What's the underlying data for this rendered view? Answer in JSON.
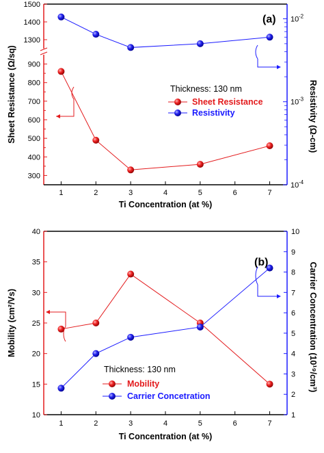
{
  "colors": {
    "red": "#e31a1c",
    "blue": "#1a1aff",
    "axis": "#000000"
  },
  "chart_data": [
    {
      "panel_label": "(a)",
      "type": "line",
      "x": [
        1,
        2,
        3,
        5,
        7
      ],
      "xlabel": "Ti Concentration (at %)",
      "xlim": [
        0.5,
        7.5
      ],
      "xticks": [
        "1",
        "2",
        "3",
        "4",
        "5",
        "6",
        "7"
      ],
      "ylabel": "Sheet Resistance (Ω/sq)",
      "ylabel_right": "Resistivity (Ω-cm)",
      "y_broken": true,
      "ylim_lower": [
        250,
        950
      ],
      "ylim_upper": [
        1250,
        1500
      ],
      "yticks": [
        "300",
        "400",
        "500",
        "600",
        "700",
        "800",
        "900",
        "1300",
        "1400",
        "1500"
      ],
      "y2_scale": "log",
      "y2lim": [
        0.0001,
        0.015
      ],
      "y2ticks": [
        "10",
        "10",
        "10"
      ],
      "y2tick_exponents": [
        "-2",
        "-3",
        "-4"
      ],
      "annotation": "Thickness: 130 nm",
      "series": [
        {
          "name": "Sheet Resistance",
          "axis": "left",
          "color": "red",
          "values": [
            860,
            490,
            330,
            360,
            460
          ]
        },
        {
          "name": "Resistivity",
          "axis": "right",
          "color": "blue",
          "values": [
            0.0105,
            0.0065,
            0.0045,
            0.005,
            0.006
          ]
        }
      ]
    },
    {
      "panel_label": "(b)",
      "type": "line",
      "x": [
        1,
        2,
        3,
        5,
        7
      ],
      "xlabel": "Ti Concentration (at %)",
      "xlim": [
        0.5,
        7.5
      ],
      "xticks": [
        "1",
        "2",
        "3",
        "4",
        "5",
        "6",
        "7"
      ],
      "ylabel": "Mobility (cm²/Vs)",
      "ylim": [
        10,
        40
      ],
      "yticks": [
        "10",
        "15",
        "20",
        "25",
        "30",
        "35",
        "40"
      ],
      "ylabel_right": "Carrier Concentration (10¹⁹/cm³)",
      "y2lim": [
        1,
        10
      ],
      "y2ticks": [
        "1",
        "2",
        "3",
        "4",
        "5",
        "6",
        "7",
        "8",
        "9",
        "10"
      ],
      "annotation": "Thickness: 130 nm",
      "series": [
        {
          "name": "Mobility",
          "axis": "left",
          "color": "red",
          "values": [
            24,
            25,
            33,
            25,
            15
          ]
        },
        {
          "name": "Carrier Concetration",
          "axis": "right",
          "color": "blue",
          "values": [
            2.3,
            4.0,
            4.8,
            5.3,
            8.2
          ]
        }
      ]
    }
  ]
}
